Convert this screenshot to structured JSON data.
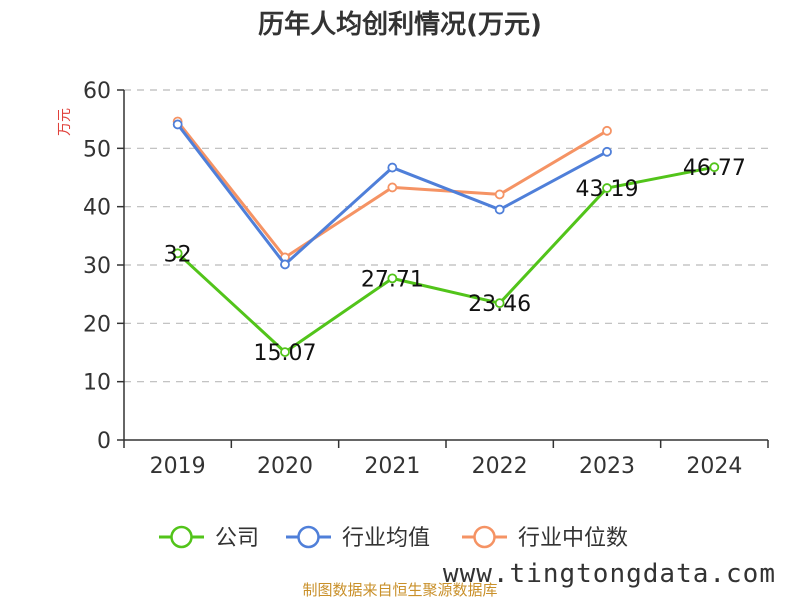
{
  "chart_data": {
    "type": "line",
    "title": "历年人均创利情况(万元)",
    "ylabel": "万元",
    "xlabel": "",
    "categories": [
      "2019",
      "2020",
      "2021",
      "2022",
      "2023",
      "2024"
    ],
    "ylim": [
      0,
      60
    ],
    "yticks": [
      "0",
      "10",
      "20",
      "30",
      "40",
      "50",
      "60"
    ],
    "grid": true,
    "legend_position": "bottom",
    "series": [
      {
        "name": "公司",
        "color": "#52c41a",
        "values": [
          32,
          15.07,
          27.71,
          23.46,
          43.19,
          46.77
        ],
        "labels": [
          "32",
          "15.07",
          "27.71",
          "23.46",
          "43.19",
          "46.77"
        ]
      },
      {
        "name": "行业均值",
        "color": "#4f7fd9",
        "values": [
          54.1,
          30.1,
          46.7,
          39.5,
          49.4,
          null
        ]
      },
      {
        "name": "行业中位数",
        "color": "#f59364",
        "values": [
          54.6,
          31.3,
          43.3,
          42.1,
          53.0,
          null
        ]
      }
    ]
  },
  "footer": {
    "source": "制图数据来自恒生聚源数据库",
    "watermark": "www.tingtongdata.com"
  }
}
